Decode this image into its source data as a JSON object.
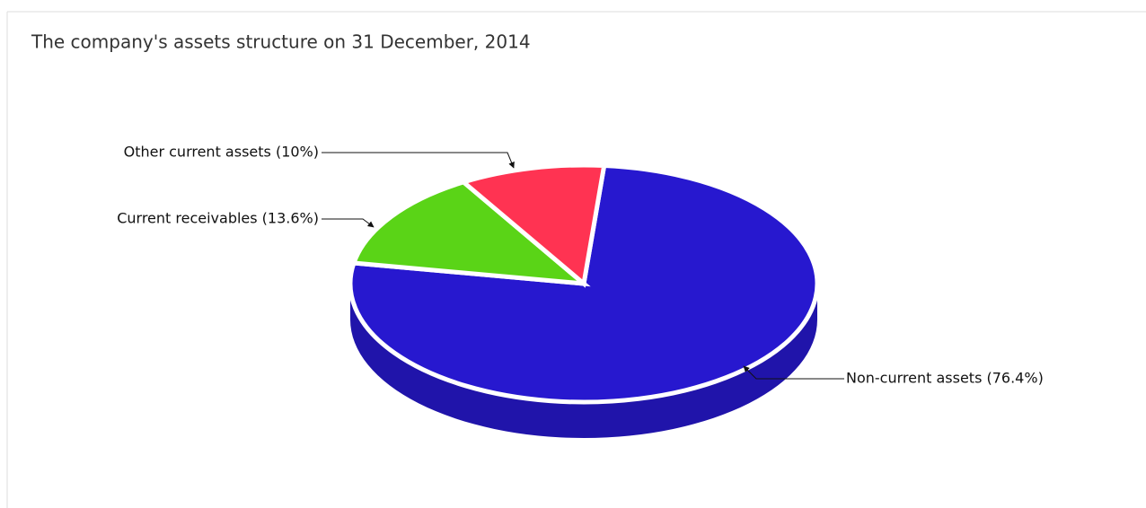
{
  "chart_data": {
    "type": "pie3d",
    "title": "The company's assets structure on 31 December, 2014",
    "values": [
      76.4,
      13.6,
      10
    ],
    "value_labels": [
      "Non-current assets (76.4%)",
      "Current receivables (13.6%)",
      "Other current assets (10%)"
    ],
    "colors": [
      "#2718cf",
      "#5ad417",
      "#ff3352"
    ]
  }
}
